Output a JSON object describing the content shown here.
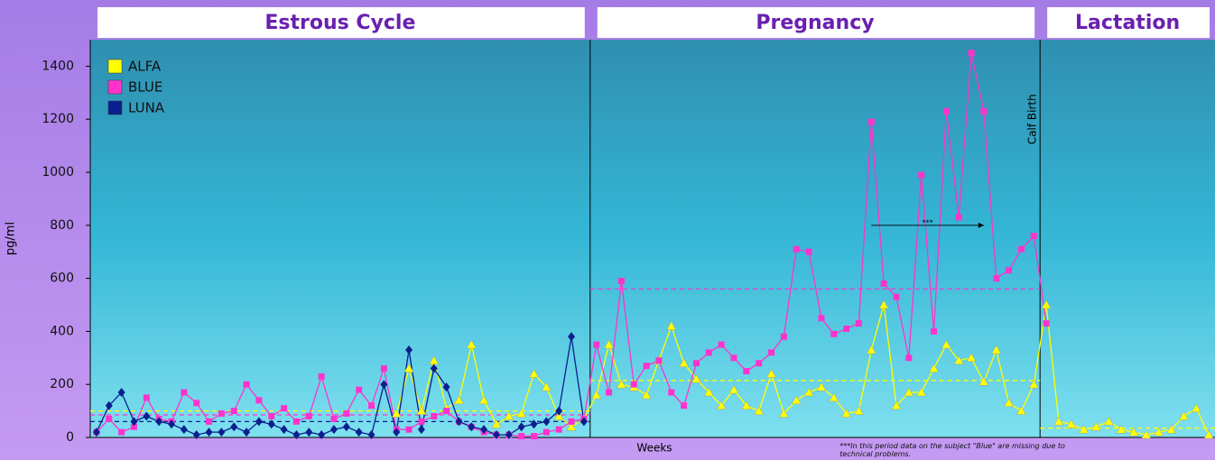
{
  "chart_data": {
    "type": "line",
    "y_label": "pg/ml",
    "x_label": "Weeks",
    "ylim": [
      0,
      1500
    ],
    "yticks": [
      0,
      200,
      400,
      600,
      800,
      1000,
      1200,
      1400
    ],
    "xlim": [
      0.5,
      90.5
    ],
    "legend": "top-left",
    "sections": [
      {
        "name": "Estrous Cycle",
        "range": [
          0.5,
          40.5
        ]
      },
      {
        "name": "Pregnancy",
        "range": [
          40.5,
          76.5
        ]
      },
      {
        "name": "Lactation",
        "range": [
          76.5,
          90.5
        ]
      }
    ],
    "annotations": [
      {
        "text": "Calf Birth",
        "x": 76.5,
        "y": 1200
      },
      {
        "text": "***",
        "x": [
          63,
          72
        ],
        "y": 800
      },
      {
        "text": "***In this period data on the subject \"Blue\" are missing due to technical problems.",
        "x": 69.5,
        "y": -30
      }
    ],
    "x": [
      1,
      2,
      3,
      4,
      5,
      6,
      7,
      8,
      9,
      10,
      11,
      12,
      13,
      14,
      15,
      16,
      17,
      18,
      19,
      20,
      21,
      22,
      23,
      24,
      25,
      26,
      27,
      28,
      29,
      30,
      31,
      32,
      33,
      34,
      35,
      36,
      37,
      38,
      39,
      40,
      41,
      42,
      43,
      44,
      45,
      46,
      47,
      48,
      49,
      50,
      51,
      52,
      53,
      54,
      55,
      56,
      57,
      58,
      59,
      60,
      61,
      62,
      63,
      64,
      65,
      66,
      67,
      68,
      69,
      70,
      71,
      72,
      73,
      74,
      75,
      76,
      77,
      78,
      79,
      80,
      81,
      82,
      83,
      84,
      85,
      86,
      87,
      88,
      89,
      90
    ],
    "series": [
      {
        "name": "ALFA",
        "color": "#ffff00",
        "marker": "triangle",
        "means": [
          100,
          215,
          35
        ],
        "values": [
          null,
          null,
          null,
          null,
          null,
          null,
          null,
          null,
          null,
          null,
          null,
          null,
          null,
          null,
          null,
          null,
          null,
          null,
          null,
          null,
          null,
          null,
          null,
          null,
          90,
          260,
          100,
          290,
          110,
          140,
          350,
          140,
          50,
          80,
          90,
          240,
          190,
          80,
          40,
          70,
          160,
          350,
          200,
          190,
          160,
          290,
          420,
          280,
          220,
          170,
          120,
          180,
          120,
          100,
          240,
          90,
          140,
          170,
          190,
          150,
          90,
          100,
          330,
          500,
          120,
          170,
          170,
          260,
          350,
          290,
          300,
          210,
          330,
          130,
          100,
          200,
          500,
          60,
          50,
          30,
          40,
          60,
          30,
          20,
          10,
          20,
          30,
          80,
          110,
          10
        ]
      },
      {
        "name": "BLUE",
        "color": "#ff33cc",
        "marker": "square",
        "means": [
          85,
          560,
          null
        ],
        "values": [
          20,
          70,
          20,
          40,
          150,
          70,
          60,
          170,
          130,
          60,
          90,
          100,
          200,
          140,
          80,
          110,
          60,
          80,
          230,
          70,
          90,
          180,
          120,
          260,
          30,
          30,
          60,
          80,
          100,
          60,
          40,
          20,
          10,
          10,
          5,
          5,
          20,
          30,
          60,
          70,
          350,
          170,
          590,
          200,
          270,
          290,
          170,
          120,
          280,
          320,
          350,
          300,
          250,
          280,
          320,
          380,
          710,
          700,
          450,
          390,
          410,
          430,
          1190,
          580,
          530,
          300,
          990,
          400,
          1230,
          830,
          1450,
          1230,
          600,
          630,
          710,
          760,
          430,
          null,
          null,
          null,
          null,
          null,
          null,
          null,
          null,
          null,
          null,
          null,
          null,
          null
        ]
      },
      {
        "name": "LUNA",
        "color": "#0a1f8f",
        "marker": "diamond",
        "means": [
          60,
          null,
          null
        ],
        "values": [
          20,
          120,
          170,
          60,
          80,
          60,
          50,
          30,
          10,
          20,
          20,
          40,
          20,
          60,
          50,
          30,
          10,
          20,
          10,
          30,
          40,
          20,
          10,
          200,
          20,
          330,
          30,
          260,
          190,
          60,
          40,
          30,
          10,
          10,
          40,
          50,
          60,
          100,
          380,
          60,
          null,
          null,
          null,
          null,
          null,
          null,
          null,
          null,
          null,
          null,
          null,
          null,
          null,
          null,
          null,
          null,
          null,
          null,
          null,
          null,
          null,
          null,
          null,
          null,
          null,
          null,
          null,
          null,
          null,
          null,
          null,
          null,
          null,
          null,
          null,
          null,
          null,
          null,
          null,
          null,
          null,
          null,
          null,
          null,
          null,
          null,
          null,
          null,
          null,
          null
        ]
      }
    ]
  }
}
